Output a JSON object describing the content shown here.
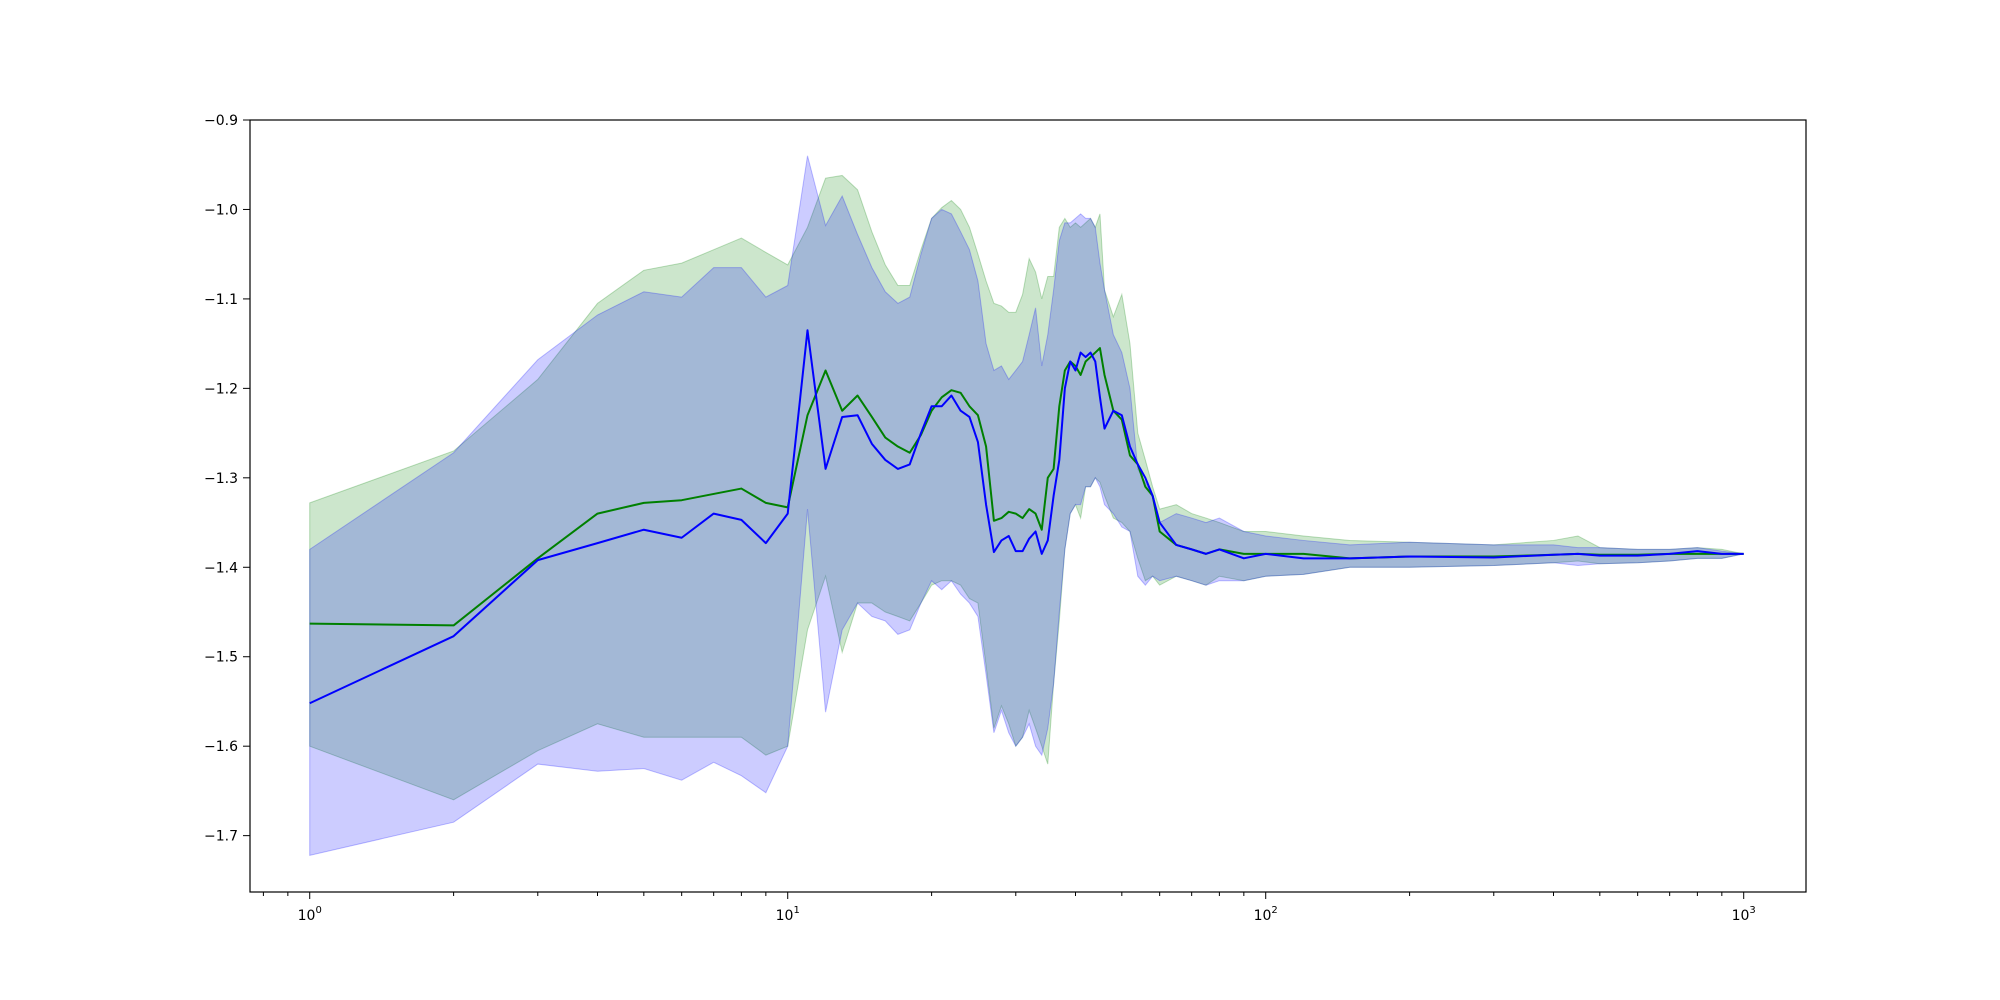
{
  "chart_data": {
    "type": "line",
    "title": "",
    "xlabel": "",
    "ylabel": "",
    "xscale": "log",
    "xlim": [
      0.75,
      1350
    ],
    "ylim": [
      -1.763,
      -0.9
    ],
    "grid": false,
    "legend": "none",
    "xticks": [
      {
        "value": 1,
        "base": "10",
        "exp": "0"
      },
      {
        "value": 10,
        "base": "10",
        "exp": "1"
      },
      {
        "value": 100,
        "base": "10",
        "exp": "2"
      },
      {
        "value": 1000,
        "base": "10",
        "exp": "3"
      }
    ],
    "yticks": [
      {
        "value": -0.9,
        "label": "−0.9"
      },
      {
        "value": -1.0,
        "label": "−1.0"
      },
      {
        "value": -1.1,
        "label": "−1.1"
      },
      {
        "value": -1.2,
        "label": "−1.2"
      },
      {
        "value": -1.3,
        "label": "−1.3"
      },
      {
        "value": -1.4,
        "label": "−1.4"
      },
      {
        "value": -1.5,
        "label": "−1.5"
      },
      {
        "value": -1.6,
        "label": "−1.6"
      },
      {
        "value": -1.7,
        "label": "−1.7"
      }
    ],
    "series": [
      {
        "color": "#008000",
        "band_color": "#008000",
        "band_opacity": 0.2,
        "x": [
          1,
          2,
          3,
          4,
          5,
          6,
          7,
          8,
          9,
          10,
          11,
          12,
          13,
          14,
          15,
          16,
          17,
          18,
          19,
          20,
          21,
          22,
          23,
          24,
          25,
          26,
          27,
          28,
          29,
          30,
          31,
          32,
          33,
          34,
          35,
          36,
          37,
          38,
          39,
          40,
          41,
          42,
          43,
          44,
          45,
          46,
          48,
          50,
          52,
          54,
          56,
          58,
          60,
          65,
          70,
          75,
          80,
          90,
          100,
          120,
          150,
          200,
          300,
          400,
          450,
          500,
          600,
          700,
          800,
          900,
          1000
        ],
        "mean": [
          -1.463,
          -1.465,
          -1.39,
          -1.34,
          -1.328,
          -1.325,
          -1.318,
          -1.312,
          -1.328,
          -1.333,
          -1.23,
          -1.18,
          -1.225,
          -1.208,
          -1.232,
          -1.255,
          -1.265,
          -1.272,
          -1.252,
          -1.225,
          -1.21,
          -1.202,
          -1.205,
          -1.22,
          -1.23,
          -1.265,
          -1.348,
          -1.345,
          -1.338,
          -1.34,
          -1.345,
          -1.335,
          -1.34,
          -1.358,
          -1.3,
          -1.29,
          -1.22,
          -1.18,
          -1.17,
          -1.175,
          -1.185,
          -1.17,
          -1.165,
          -1.16,
          -1.155,
          -1.185,
          -1.225,
          -1.235,
          -1.275,
          -1.285,
          -1.31,
          -1.32,
          -1.36,
          -1.375,
          -1.38,
          -1.385,
          -1.38,
          -1.385,
          -1.385,
          -1.385,
          -1.39,
          -1.388,
          -1.388,
          -1.386,
          -1.385,
          -1.386,
          -1.386,
          -1.385,
          -1.385,
          -1.385,
          -1.385
        ],
        "upper": [
          -1.328,
          -1.27,
          -1.19,
          -1.105,
          -1.068,
          -1.06,
          -1.045,
          -1.032,
          -1.048,
          -1.062,
          -1.02,
          -0.965,
          -0.962,
          -0.978,
          -1.025,
          -1.062,
          -1.085,
          -1.085,
          -1.045,
          -1.01,
          -0.998,
          -0.99,
          -1.0,
          -1.02,
          -1.05,
          -1.08,
          -1.105,
          -1.108,
          -1.115,
          -1.115,
          -1.095,
          -1.055,
          -1.07,
          -1.1,
          -1.075,
          -1.075,
          -1.02,
          -1.01,
          -1.02,
          -1.015,
          -1.02,
          -1.015,
          -1.01,
          -1.02,
          -1.005,
          -1.09,
          -1.12,
          -1.095,
          -1.15,
          -1.25,
          -1.28,
          -1.31,
          -1.335,
          -1.33,
          -1.34,
          -1.345,
          -1.35,
          -1.36,
          -1.36,
          -1.365,
          -1.37,
          -1.372,
          -1.375,
          -1.37,
          -1.365,
          -1.378,
          -1.38,
          -1.38,
          -1.378,
          -1.38,
          -1.385
        ],
        "lower": [
          -1.6,
          -1.66,
          -1.605,
          -1.575,
          -1.59,
          -1.59,
          -1.59,
          -1.59,
          -1.61,
          -1.6,
          -1.47,
          -1.41,
          -1.495,
          -1.44,
          -1.44,
          -1.45,
          -1.455,
          -1.46,
          -1.44,
          -1.42,
          -1.415,
          -1.415,
          -1.42,
          -1.435,
          -1.44,
          -1.51,
          -1.58,
          -1.555,
          -1.575,
          -1.6,
          -1.59,
          -1.56,
          -1.58,
          -1.6,
          -1.62,
          -1.53,
          -1.46,
          -1.38,
          -1.34,
          -1.33,
          -1.345,
          -1.31,
          -1.31,
          -1.3,
          -1.305,
          -1.32,
          -1.345,
          -1.35,
          -1.36,
          -1.39,
          -1.415,
          -1.41,
          -1.42,
          -1.41,
          -1.415,
          -1.42,
          -1.41,
          -1.415,
          -1.41,
          -1.408,
          -1.4,
          -1.4,
          -1.398,
          -1.395,
          -1.393,
          -1.396,
          -1.395,
          -1.393,
          -1.39,
          -1.39,
          -1.385
        ]
      },
      {
        "color": "#0000ff",
        "band_color": "#0000ff",
        "band_opacity": 0.2,
        "x": [
          1,
          2,
          3,
          4,
          5,
          6,
          7,
          8,
          9,
          10,
          11,
          12,
          13,
          14,
          15,
          16,
          17,
          18,
          19,
          20,
          21,
          22,
          23,
          24,
          25,
          26,
          27,
          28,
          29,
          30,
          31,
          32,
          33,
          34,
          35,
          36,
          37,
          38,
          39,
          40,
          41,
          42,
          43,
          44,
          45,
          46,
          48,
          50,
          52,
          54,
          56,
          58,
          60,
          65,
          70,
          75,
          80,
          90,
          100,
          120,
          150,
          200,
          300,
          400,
          450,
          500,
          600,
          700,
          800,
          900,
          1000
        ],
        "mean": [
          -1.552,
          -1.477,
          -1.392,
          -1.373,
          -1.358,
          -1.367,
          -1.34,
          -1.347,
          -1.373,
          -1.34,
          -1.135,
          -1.29,
          -1.232,
          -1.23,
          -1.262,
          -1.28,
          -1.29,
          -1.285,
          -1.25,
          -1.22,
          -1.22,
          -1.208,
          -1.225,
          -1.232,
          -1.26,
          -1.33,
          -1.383,
          -1.37,
          -1.365,
          -1.382,
          -1.382,
          -1.368,
          -1.36,
          -1.385,
          -1.37,
          -1.32,
          -1.28,
          -1.2,
          -1.17,
          -1.18,
          -1.16,
          -1.165,
          -1.16,
          -1.17,
          -1.21,
          -1.245,
          -1.225,
          -1.23,
          -1.265,
          -1.285,
          -1.3,
          -1.32,
          -1.35,
          -1.375,
          -1.38,
          -1.385,
          -1.38,
          -1.39,
          -1.385,
          -1.39,
          -1.39,
          -1.388,
          -1.389,
          -1.386,
          -1.385,
          -1.387,
          -1.387,
          -1.385,
          -1.382,
          -1.385,
          -1.385
        ],
        "upper": [
          -1.38,
          -1.272,
          -1.168,
          -1.118,
          -1.092,
          -1.098,
          -1.065,
          -1.065,
          -1.098,
          -1.085,
          -0.94,
          -1.018,
          -0.985,
          -1.028,
          -1.065,
          -1.092,
          -1.105,
          -1.098,
          -1.05,
          -1.01,
          -1.0,
          -1.005,
          -1.025,
          -1.045,
          -1.08,
          -1.15,
          -1.18,
          -1.175,
          -1.19,
          -1.18,
          -1.17,
          -1.14,
          -1.11,
          -1.175,
          -1.14,
          -1.09,
          -1.035,
          -1.015,
          -1.015,
          -1.01,
          -1.005,
          -1.01,
          -1.01,
          -1.02,
          -1.06,
          -1.09,
          -1.14,
          -1.16,
          -1.2,
          -1.29,
          -1.305,
          -1.32,
          -1.35,
          -1.34,
          -1.345,
          -1.35,
          -1.345,
          -1.36,
          -1.365,
          -1.37,
          -1.375,
          -1.372,
          -1.375,
          -1.375,
          -1.378,
          -1.378,
          -1.38,
          -1.38,
          -1.378,
          -1.382,
          -1.385
        ],
        "lower": [
          -1.722,
          -1.685,
          -1.62,
          -1.628,
          -1.625,
          -1.638,
          -1.618,
          -1.633,
          -1.652,
          -1.6,
          -1.335,
          -1.562,
          -1.47,
          -1.44,
          -1.455,
          -1.46,
          -1.475,
          -1.47,
          -1.44,
          -1.415,
          -1.425,
          -1.415,
          -1.43,
          -1.44,
          -1.455,
          -1.52,
          -1.585,
          -1.56,
          -1.585,
          -1.6,
          -1.59,
          -1.575,
          -1.6,
          -1.61,
          -1.58,
          -1.53,
          -1.45,
          -1.38,
          -1.34,
          -1.33,
          -1.33,
          -1.31,
          -1.31,
          -1.3,
          -1.31,
          -1.33,
          -1.34,
          -1.355,
          -1.36,
          -1.41,
          -1.42,
          -1.41,
          -1.415,
          -1.41,
          -1.415,
          -1.42,
          -1.415,
          -1.415,
          -1.41,
          -1.408,
          -1.4,
          -1.4,
          -1.398,
          -1.395,
          -1.398,
          -1.396,
          -1.395,
          -1.393,
          -1.39,
          -1.39,
          -1.385
        ]
      }
    ]
  }
}
